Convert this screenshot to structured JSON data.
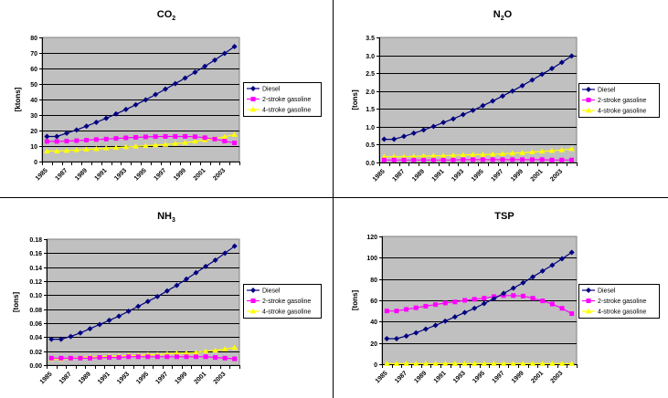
{
  "colors": {
    "diesel": "#000080",
    "two_stroke": "#ff00ff",
    "four_stroke": "#ffff00",
    "plot_bg": "#c0c0c0",
    "gridline": "#000000",
    "divider": "#000000"
  },
  "chart_data": [
    {
      "type": "line",
      "title_main": "CO",
      "title_sub": "2",
      "title": "CO2",
      "ylabel": "[ktons]",
      "xlabel": "",
      "ylim": [
        0,
        80
      ],
      "yticks": [
        0,
        10,
        20,
        30,
        40,
        50,
        60,
        70,
        80
      ],
      "ytick_labels": [
        "0",
        "10",
        "20",
        "30",
        "40",
        "50",
        "60",
        "70",
        "80"
      ],
      "ytick_decimals": 0,
      "grid": true,
      "legend": "right",
      "x": [
        1985,
        1986,
        1987,
        1988,
        1989,
        1990,
        1991,
        1992,
        1993,
        1994,
        1995,
        1996,
        1997,
        1998,
        1999,
        2000,
        2001,
        2002,
        2003,
        2004
      ],
      "xtick_labels": [
        "1985",
        "1987",
        "1989",
        "1991",
        "1993",
        "1995",
        "1997",
        "1999",
        "2001",
        "2003"
      ],
      "series": [
        {
          "name": "Diesel",
          "marker": "diamond",
          "values": [
            16.2,
            16.2,
            18.3,
            20.4,
            22.8,
            25.3,
            27.9,
            30.7,
            33.6,
            36.6,
            39.8,
            43.2,
            46.7,
            50.2,
            53.8,
            57.6,
            61.4,
            65.4,
            69.7,
            74.1
          ]
        },
        {
          "name": "2-stroke gasoline",
          "marker": "square",
          "values": [
            13.0,
            13.0,
            13.2,
            13.5,
            13.8,
            14.2,
            14.5,
            14.9,
            15.3,
            15.6,
            15.9,
            16.1,
            16.2,
            16.2,
            16.2,
            16.0,
            15.4,
            14.5,
            13.2,
            12.0
          ]
        },
        {
          "name": "4-stroke gasoline",
          "marker": "triangle",
          "values": [
            6.8,
            6.8,
            7.1,
            7.5,
            7.9,
            8.2,
            8.6,
            9.0,
            9.4,
            9.8,
            10.2,
            10.6,
            11.0,
            11.6,
            12.2,
            13.0,
            13.9,
            14.9,
            16.0,
            17.4
          ]
        }
      ]
    },
    {
      "type": "line",
      "title_main": "N",
      "title_sub": "2",
      "title_tail": "O",
      "title": "N2O",
      "ylabel": "[tons]",
      "xlabel": "",
      "ylim": [
        0,
        3.5
      ],
      "yticks": [
        0,
        0.5,
        1.0,
        1.5,
        2.0,
        2.5,
        3.0,
        3.5
      ],
      "ytick_labels": [
        "0.0",
        "0.5",
        "1.0",
        "1.5",
        "2.0",
        "2.5",
        "3.0",
        "3.5"
      ],
      "grid": true,
      "legend": "right",
      "x": [
        1985,
        1986,
        1987,
        1988,
        1989,
        1990,
        1991,
        1992,
        1993,
        1994,
        1995,
        1996,
        1997,
        1998,
        1999,
        2000,
        2001,
        2002,
        2003,
        2004
      ],
      "xtick_labels": [
        "1985",
        "1987",
        "1989",
        "1991",
        "1993",
        "1995",
        "1997",
        "1999",
        "2001",
        "2003"
      ],
      "series": [
        {
          "name": "Diesel",
          "marker": "diamond",
          "values": [
            0.65,
            0.65,
            0.73,
            0.82,
            0.91,
            1.01,
            1.12,
            1.22,
            1.34,
            1.46,
            1.59,
            1.72,
            1.86,
            2.0,
            2.15,
            2.31,
            2.47,
            2.63,
            2.8,
            2.98
          ]
        },
        {
          "name": "2-stroke gasoline",
          "marker": "square",
          "values": [
            0.07,
            0.07,
            0.07,
            0.07,
            0.07,
            0.07,
            0.07,
            0.07,
            0.08,
            0.08,
            0.08,
            0.08,
            0.08,
            0.08,
            0.08,
            0.08,
            0.08,
            0.07,
            0.07,
            0.07
          ]
        },
        {
          "name": "4-stroke gasoline",
          "marker": "triangle",
          "values": [
            0.16,
            0.16,
            0.16,
            0.17,
            0.18,
            0.19,
            0.19,
            0.2,
            0.21,
            0.22,
            0.22,
            0.23,
            0.24,
            0.26,
            0.27,
            0.29,
            0.31,
            0.33,
            0.35,
            0.38
          ]
        }
      ]
    },
    {
      "type": "line",
      "title_main": "NH",
      "title_sub": "3",
      "title": "NH3",
      "ylabel": "[tons]",
      "xlabel": "",
      "ylim": [
        0,
        0.18
      ],
      "yticks": [
        0,
        0.02,
        0.04,
        0.06,
        0.08,
        0.1,
        0.12,
        0.14,
        0.16,
        0.18
      ],
      "ytick_labels": [
        "0.00",
        "0.02",
        "0.04",
        "0.06",
        "0.08",
        "0.10",
        "0.12",
        "0.14",
        "0.16",
        "0.18"
      ],
      "grid": true,
      "legend": "right",
      "x": [
        1985,
        1986,
        1987,
        1988,
        1989,
        1990,
        1991,
        1992,
        1993,
        1994,
        1995,
        1996,
        1997,
        1998,
        1999,
        2000,
        2001,
        2002,
        2003,
        2004
      ],
      "xtick_labels": [
        "1985",
        "1987",
        "1989",
        "1991",
        "1993",
        "1995",
        "1997",
        "1999",
        "2001",
        "2003"
      ],
      "series": [
        {
          "name": "Diesel",
          "marker": "diamond",
          "values": [
            0.037,
            0.037,
            0.041,
            0.046,
            0.052,
            0.058,
            0.064,
            0.07,
            0.077,
            0.084,
            0.091,
            0.098,
            0.106,
            0.114,
            0.123,
            0.132,
            0.141,
            0.15,
            0.16,
            0.17
          ]
        },
        {
          "name": "2-stroke gasoline",
          "marker": "square",
          "values": [
            0.01,
            0.01,
            0.01,
            0.01,
            0.01,
            0.011,
            0.011,
            0.011,
            0.012,
            0.012,
            0.012,
            0.012,
            0.012,
            0.012,
            0.012,
            0.012,
            0.012,
            0.011,
            0.01,
            0.009
          ]
        },
        {
          "name": "4-stroke gasoline",
          "marker": "triangle",
          "values": [
            0.009,
            0.009,
            0.01,
            0.011,
            0.012,
            0.012,
            0.013,
            0.013,
            0.014,
            0.014,
            0.015,
            0.015,
            0.016,
            0.017,
            0.017,
            0.018,
            0.02,
            0.021,
            0.023,
            0.025
          ]
        }
      ]
    },
    {
      "type": "line",
      "title_main": "TSP",
      "title": "TSP",
      "ylabel": "[tons]",
      "xlabel": "",
      "ylim": [
        0,
        120
      ],
      "yticks": [
        0,
        20,
        40,
        60,
        80,
        100,
        120
      ],
      "ytick_labels": [
        "0",
        "20",
        "40",
        "60",
        "80",
        "100",
        "120"
      ],
      "grid": true,
      "legend": "right",
      "x": [
        1985,
        1986,
        1987,
        1988,
        1989,
        1990,
        1991,
        1992,
        1993,
        1994,
        1995,
        1996,
        1997,
        1998,
        1999,
        2000,
        2001,
        2002,
        2003,
        2004
      ],
      "xtick_labels": [
        "1985",
        "1987",
        "1989",
        "1991",
        "1993",
        "1995",
        "1997",
        "1999",
        "2001",
        "2003"
      ],
      "series": [
        {
          "name": "Diesel",
          "marker": "diamond",
          "values": [
            24,
            24,
            26.5,
            29.5,
            33,
            36.5,
            40.5,
            44.5,
            48.5,
            52.5,
            57,
            61.5,
            66.5,
            71.5,
            76.5,
            82,
            87.5,
            93,
            99,
            105
          ]
        },
        {
          "name": "2-stroke gasoline",
          "marker": "square",
          "values": [
            50,
            50,
            51.5,
            53,
            54.5,
            56,
            57.5,
            58.5,
            60,
            61,
            62,
            63.5,
            64.5,
            64.5,
            64,
            62,
            59.5,
            56.5,
            52.5,
            47.5
          ]
        },
        {
          "name": "4-stroke gasoline",
          "marker": "triangle",
          "values": [
            0.5,
            0.5,
            0.5,
            0.5,
            0.5,
            0.5,
            0.5,
            0.5,
            0.5,
            0.5,
            0.5,
            0.5,
            0.5,
            0.5,
            0.5,
            0.5,
            0.5,
            0.5,
            0.5,
            0.5
          ]
        }
      ]
    }
  ]
}
